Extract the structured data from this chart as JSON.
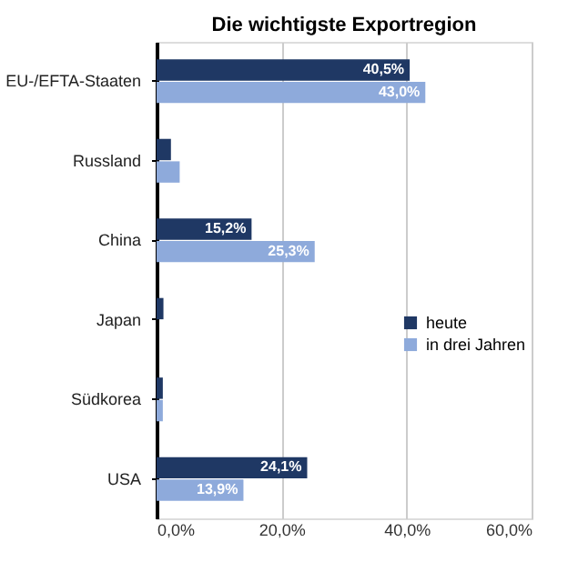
{
  "chart_data": {
    "type": "bar",
    "orientation": "horizontal",
    "title": "Die wichtigste Exportregion",
    "categories": [
      "EU-/EFTA-Staaten",
      "Russland",
      "China",
      "Japan",
      "Südkorea",
      "USA"
    ],
    "series": [
      {
        "name": "heute",
        "color": "#1f3864",
        "values": [
          40.5,
          2.3,
          15.2,
          1.1,
          1.0,
          24.1
        ],
        "value_labels": [
          "40,5%",
          null,
          "15,2%",
          null,
          null,
          "24,1%"
        ]
      },
      {
        "name": "in drei Jahren",
        "color": "#8eaadb",
        "values": [
          43.0,
          3.7,
          25.3,
          0,
          1.0,
          13.9
        ],
        "value_labels": [
          "43,0%",
          null,
          "25,3%",
          null,
          null,
          "13,9%"
        ]
      }
    ],
    "xlim": [
      0,
      60
    ],
    "xticks": [
      {
        "value": 0,
        "label": "0,0%"
      },
      {
        "value": 20,
        "label": "20,0%"
      },
      {
        "value": 40,
        "label": "40,0%"
      },
      {
        "value": 60,
        "label": "60,0%"
      }
    ],
    "grid": "x",
    "legend": "right"
  }
}
